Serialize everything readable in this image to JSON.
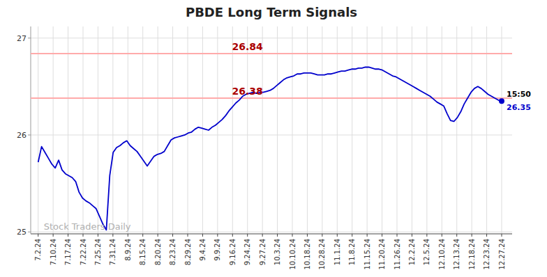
{
  "chart_data": {
    "type": "line",
    "title": "PBDE Long Term Signals",
    "color": "#0000cc",
    "grid": true,
    "xlim": [
      -0.5,
      31.7
    ],
    "xticks": [
      {
        "value": 0,
        "label": "7.2.24"
      },
      {
        "value": 1,
        "label": "7.10.24"
      },
      {
        "value": 2,
        "label": "7.17.24"
      },
      {
        "value": 3,
        "label": "7.22.24"
      },
      {
        "value": 4,
        "label": "7.25.24"
      },
      {
        "value": 5,
        "label": "7.31.24"
      },
      {
        "value": 6,
        "label": "8.9.24"
      },
      {
        "value": 7,
        "label": "8.15.24"
      },
      {
        "value": 8,
        "label": "8.20.24"
      },
      {
        "value": 9,
        "label": "8.23.24"
      },
      {
        "value": 10,
        "label": "8.29.24"
      },
      {
        "value": 11,
        "label": "9.4.24"
      },
      {
        "value": 12,
        "label": "9.9.24"
      },
      {
        "value": 13,
        "label": "9.16.24"
      },
      {
        "value": 14,
        "label": "9.24.24"
      },
      {
        "value": 15,
        "label": "9.27.24"
      },
      {
        "value": 16,
        "label": "10.3.24"
      },
      {
        "value": 17,
        "label": "10.10.24"
      },
      {
        "value": 18,
        "label": "10.18.24"
      },
      {
        "value": 19,
        "label": "10.28.24"
      },
      {
        "value": 20,
        "label": "11.1.24"
      },
      {
        "value": 21,
        "label": "11.8.24"
      },
      {
        "value": 22,
        "label": "11.15.24"
      },
      {
        "value": 23,
        "label": "11.20.24"
      },
      {
        "value": 24,
        "label": "11.26.24"
      },
      {
        "value": 25,
        "label": "12.2.24"
      },
      {
        "value": 26,
        "label": "12.5.24"
      },
      {
        "value": 27,
        "label": "12.10.24"
      },
      {
        "value": 28,
        "label": "12.13.24"
      },
      {
        "value": 29,
        "label": "12.18.24"
      },
      {
        "value": 30,
        "label": "12.23.24"
      },
      {
        "value": 31,
        "label": "12.27.24"
      }
    ],
    "ylim": [
      24.98,
      27.12
    ],
    "yticks": [
      25,
      26,
      27
    ],
    "values": [
      25.72,
      25.88,
      25.82,
      25.76,
      25.7,
      25.66,
      25.74,
      25.64,
      25.6,
      25.58,
      25.56,
      25.52,
      25.41,
      25.35,
      25.32,
      25.3,
      25.27,
      25.24,
      25.16,
      25.08,
      25.02,
      25.58,
      25.82,
      25.87,
      25.89,
      25.92,
      25.94,
      25.89,
      25.86,
      25.83,
      25.78,
      25.73,
      25.68,
      25.73,
      25.78,
      25.8,
      25.81,
      25.83,
      25.89,
      25.95,
      25.97,
      25.98,
      25.99,
      26.0,
      26.02,
      26.03,
      26.06,
      26.08,
      26.07,
      26.06,
      26.05,
      26.08,
      26.1,
      26.13,
      26.16,
      26.2,
      26.25,
      26.29,
      26.33,
      26.36,
      26.4,
      26.42,
      26.43,
      26.44,
      26.43,
      26.44,
      26.44,
      26.45,
      26.46,
      26.48,
      26.51,
      26.54,
      26.57,
      26.59,
      26.6,
      26.61,
      26.63,
      26.63,
      26.64,
      26.64,
      26.64,
      26.63,
      26.62,
      26.62,
      26.62,
      26.63,
      26.63,
      26.64,
      26.65,
      26.66,
      26.66,
      26.67,
      26.68,
      26.68,
      26.69,
      26.69,
      26.7,
      26.7,
      26.69,
      26.68,
      26.68,
      26.67,
      26.65,
      26.63,
      26.61,
      26.6,
      26.58,
      26.56,
      26.54,
      26.52,
      26.5,
      26.48,
      26.46,
      26.44,
      26.42,
      26.4,
      26.37,
      26.34,
      26.32,
      26.3,
      26.22,
      26.15,
      26.14,
      26.18,
      26.24,
      26.32,
      26.38,
      26.44,
      26.48,
      26.5,
      26.48,
      26.45,
      26.42,
      26.4,
      26.38,
      26.36,
      26.35
    ],
    "hlines": [
      {
        "value": 26.84,
        "label": "26.84",
        "color": "#ffaaaa"
      },
      {
        "value": 26.38,
        "label": "26.38",
        "color": "#ffaaaa"
      }
    ],
    "annotations": [
      "15:50",
      "26.35"
    ],
    "watermark": "Stock Traders Daily"
  }
}
